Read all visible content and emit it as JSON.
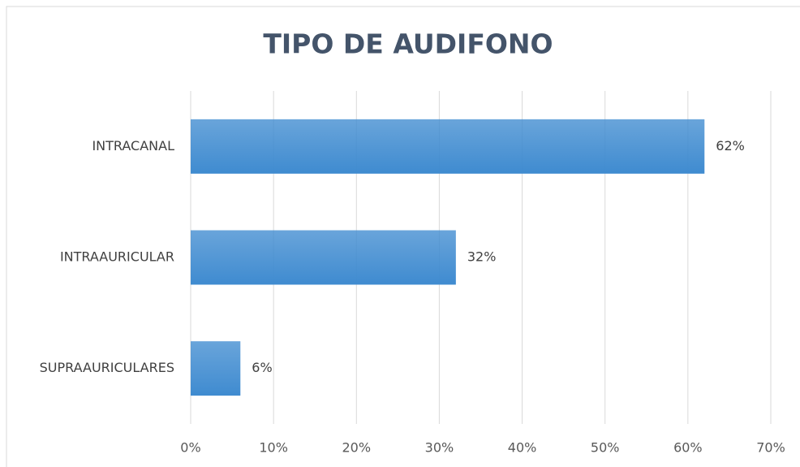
{
  "chart_data": {
    "type": "bar",
    "orientation": "horizontal",
    "title": "TIPO DE AUDIFONO",
    "categories": [
      "INTRACANAL",
      "INTRAAURICULAR",
      "SUPRAAURICULARES"
    ],
    "values": [
      62,
      32,
      6
    ],
    "value_labels": [
      "62%",
      "32%",
      "6%"
    ],
    "color": "#3f8bd0",
    "xlim": [
      0,
      70
    ],
    "xticks": [
      {
        "value": 0,
        "label": "0%"
      },
      {
        "value": 10,
        "label": "10%"
      },
      {
        "value": 20,
        "label": "20%"
      },
      {
        "value": 30,
        "label": "30%"
      },
      {
        "value": 40,
        "label": "40%"
      },
      {
        "value": 50,
        "label": "50%"
      },
      {
        "value": 60,
        "label": "60%"
      },
      {
        "value": 70,
        "label": "70%"
      }
    ],
    "grid": true
  }
}
